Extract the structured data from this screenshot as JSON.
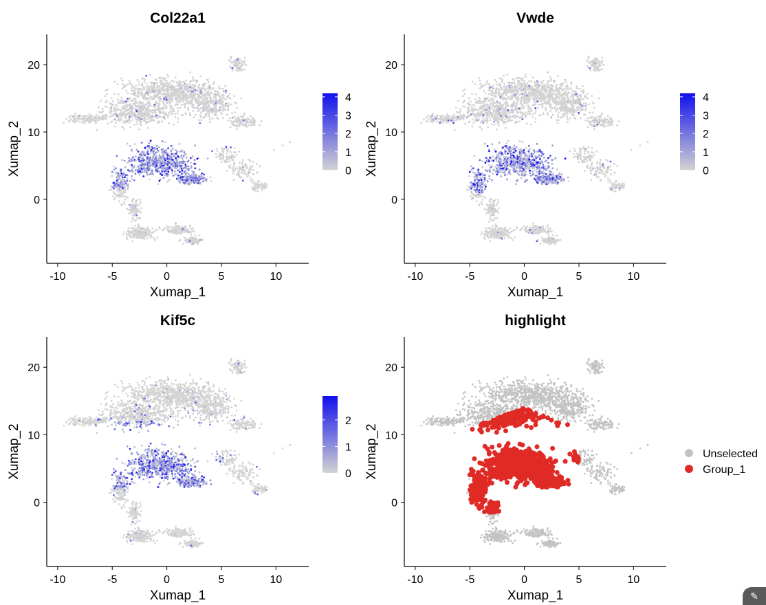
{
  "colors": {
    "low": "#d3d3d3",
    "high": "#1010ee",
    "unselected": "#c3c3c3",
    "group": "#e02a26"
  },
  "chart_data": [
    {
      "type": "scatter",
      "title": "Col22a1",
      "xlabel": "Xumap_1",
      "ylabel": "Xumap_2",
      "xlim": [
        -11,
        13
      ],
      "ylim": [
        -9.5,
        24.5
      ],
      "xticks": [
        -10,
        -5,
        0,
        5,
        10
      ],
      "xtick_labels": [
        "-10",
        "-5",
        "0",
        "5",
        "10"
      ],
      "yticks": [
        0,
        10,
        20
      ],
      "ytick_labels": [
        "0",
        "10",
        "20"
      ],
      "color_scale": {
        "min": 0,
        "max": 4.2,
        "ticks": [
          0,
          1,
          2,
          3,
          4
        ],
        "tick_labels": [
          "0",
          "1",
          "2",
          "3",
          "4"
        ],
        "low": "#d3d3d3",
        "high": "#1010ee"
      },
      "expression_hotspot": {
        "x_range": [
          -5,
          4
        ],
        "y_range": [
          1.5,
          9
        ],
        "max_value": 4
      }
    },
    {
      "type": "scatter",
      "title": "Vwde",
      "xlabel": "Xumap_1",
      "ylabel": "Xumap_2",
      "xlim": [
        -11,
        13
      ],
      "ylim": [
        -9.5,
        24.5
      ],
      "xticks": [
        -10,
        -5,
        0,
        5,
        10
      ],
      "xtick_labels": [
        "-10",
        "-5",
        "0",
        "5",
        "10"
      ],
      "yticks": [
        0,
        10,
        20
      ],
      "ytick_labels": [
        "0",
        "10",
        "20"
      ],
      "color_scale": {
        "min": 0,
        "max": 4.2,
        "ticks": [
          0,
          1,
          2,
          3,
          4
        ],
        "tick_labels": [
          "0",
          "1",
          "2",
          "3",
          "4"
        ],
        "low": "#d3d3d3",
        "high": "#1010ee"
      },
      "expression_hotspot": {
        "x_range": [
          -5,
          4
        ],
        "y_range": [
          1,
          10
        ],
        "max_value": 4
      }
    },
    {
      "type": "scatter",
      "title": "Kif5c",
      "xlabel": "Xumap_1",
      "ylabel": "Xumap_2",
      "xlim": [
        -11,
        13
      ],
      "ylim": [
        -9.5,
        24.5
      ],
      "xticks": [
        -10,
        -5,
        0,
        5,
        10
      ],
      "xtick_labels": [
        "-10",
        "-5",
        "0",
        "5",
        "10"
      ],
      "yticks": [
        0,
        10,
        20
      ],
      "ytick_labels": [
        "0",
        "10",
        "20"
      ],
      "color_scale": {
        "min": 0,
        "max": 2.9,
        "ticks": [
          0,
          1,
          2
        ],
        "tick_labels": [
          "0",
          "1",
          "2"
        ],
        "low": "#d3d3d3",
        "high": "#1010ee"
      },
      "expression_hotspot": {
        "x_range": [
          -5,
          5
        ],
        "y_range": [
          2,
          12
        ],
        "max_value": 2.9
      }
    },
    {
      "type": "scatter",
      "title": "highlight",
      "xlabel": "Xumap_1",
      "ylabel": "Xumap_2",
      "xlim": [
        -11,
        13
      ],
      "ylim": [
        -9.5,
        24.5
      ],
      "xticks": [
        -10,
        -5,
        0,
        5,
        10
      ],
      "xtick_labels": [
        "-10",
        "-5",
        "0",
        "5",
        "10"
      ],
      "yticks": [
        0,
        10,
        20
      ],
      "ytick_labels": [
        "0",
        "10",
        "20"
      ],
      "legend": {
        "position": "right",
        "items": [
          {
            "label": "Unselected",
            "color": "#c3c3c3"
          },
          {
            "label": "Group_1",
            "color": "#e02a26"
          }
        ]
      },
      "group_region": {
        "x_range": [
          -5,
          5
        ],
        "y_range": [
          -1.5,
          14.5
        ]
      }
    }
  ],
  "ui": {
    "corner_button_icon": "magic-wand-icon",
    "corner_button_glyph": "✎"
  }
}
